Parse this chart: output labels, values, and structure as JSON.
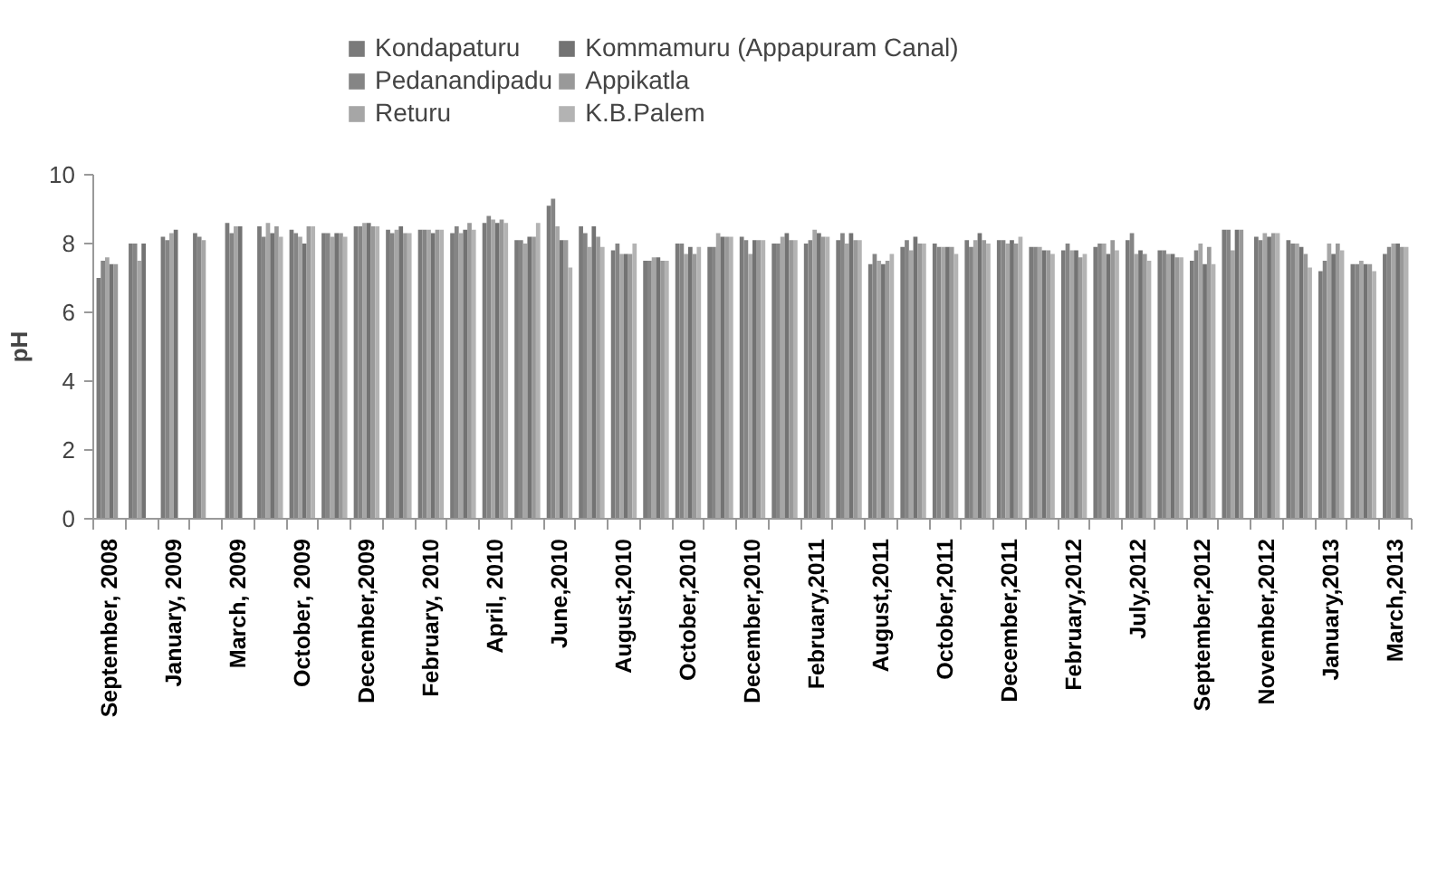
{
  "chart_data": {
    "type": "bar",
    "ylabel": "pH",
    "ylim": [
      0,
      10
    ],
    "yticks": [
      0,
      2,
      4,
      6,
      8,
      10
    ],
    "grid": false,
    "legend": "top",
    "categories": [
      "September, 2008",
      null,
      "January, 2009",
      null,
      "March, 2009",
      null,
      "October, 2009",
      null,
      "December,2009",
      null,
      "February, 2010",
      null,
      "April, 2010",
      null,
      "June,2010",
      null,
      "August,2010",
      null,
      "October,2010",
      null,
      "December,2010",
      null,
      "February,2011",
      null,
      "August,2011",
      null,
      "October,2011",
      null,
      "December,2011",
      null,
      "February,2012",
      null,
      "July,2012",
      null,
      "September,2012",
      null,
      "November,2012",
      null,
      "January,2013",
      null,
      "March,2013"
    ],
    "series": [
      {
        "name": "Kondapaturu",
        "color": "#7a7a7a",
        "values": [
          7.0,
          8.0,
          8.2,
          8.3,
          8.6,
          8.5,
          8.4,
          8.3,
          8.5,
          8.4,
          8.4,
          8.3,
          8.6,
          8.1,
          9.1,
          8.5,
          7.8,
          7.5,
          8.0,
          7.9,
          8.2,
          8.0,
          8.0,
          8.1,
          7.4,
          7.9,
          8.0,
          8.1,
          8.1,
          7.9,
          7.8,
          7.9,
          8.1,
          7.8,
          7.5,
          8.4,
          8.2,
          8.1,
          7.2,
          7.4,
          7.7
        ]
      },
      {
        "name": "Pedanandipadu",
        "color": "#858585",
        "values": [
          7.5,
          8.0,
          8.1,
          8.2,
          8.3,
          8.2,
          8.3,
          8.3,
          8.5,
          8.3,
          8.4,
          8.5,
          8.8,
          8.1,
          9.3,
          8.3,
          8.0,
          7.5,
          8.0,
          7.9,
          8.1,
          8.0,
          8.1,
          8.3,
          7.7,
          8.1,
          7.9,
          7.9,
          8.1,
          7.9,
          8.0,
          8.0,
          8.3,
          7.8,
          7.8,
          8.4,
          8.1,
          8.0,
          7.5,
          7.4,
          7.9
        ]
      },
      {
        "name": "Returu",
        "color": "#a6a6a6",
        "values": [
          7.6,
          7.5,
          8.3,
          8.1,
          8.5,
          8.6,
          8.2,
          8.2,
          8.6,
          8.4,
          8.4,
          8.3,
          8.7,
          8.0,
          8.5,
          7.9,
          7.7,
          7.6,
          7.7,
          8.3,
          7.7,
          8.2,
          8.4,
          8.0,
          7.5,
          7.8,
          7.9,
          8.1,
          8.0,
          7.9,
          7.8,
          8.0,
          7.7,
          7.7,
          8.0,
          7.8,
          8.3,
          8.0,
          8.0,
          7.5,
          8.0
        ]
      },
      {
        "name": "Kommamuru (Appapuram Canal)",
        "color": "#737373",
        "values": [
          7.4,
          8.0,
          8.4,
          null,
          8.5,
          8.3,
          8.0,
          8.3,
          8.6,
          8.5,
          8.3,
          8.4,
          8.6,
          8.2,
          8.1,
          8.5,
          7.7,
          7.6,
          7.9,
          8.2,
          8.1,
          8.3,
          8.3,
          8.3,
          7.4,
          8.2,
          7.9,
          8.3,
          8.1,
          7.8,
          7.8,
          7.7,
          7.8,
          7.7,
          7.4,
          8.4,
          8.2,
          7.9,
          7.7,
          7.4,
          8.0
        ]
      },
      {
        "name": "Appikatla",
        "color": "#999999",
        "values": [
          7.4,
          null,
          null,
          null,
          null,
          8.5,
          8.5,
          8.3,
          8.5,
          8.3,
          8.4,
          8.6,
          8.7,
          8.2,
          8.1,
          8.2,
          7.7,
          7.5,
          7.7,
          8.2,
          8.1,
          8.1,
          8.2,
          8.1,
          7.5,
          8.0,
          7.9,
          8.1,
          8.0,
          7.8,
          7.6,
          8.1,
          7.7,
          7.6,
          7.9,
          8.4,
          8.3,
          7.7,
          8.0,
          7.4,
          7.9
        ]
      },
      {
        "name": "K.B.Palem",
        "color": "#b3b3b3",
        "values": [
          null,
          null,
          null,
          null,
          null,
          8.2,
          8.5,
          8.2,
          8.5,
          8.3,
          8.4,
          8.4,
          8.6,
          8.6,
          7.3,
          7.9,
          8.0,
          7.5,
          7.9,
          8.2,
          8.1,
          8.1,
          8.2,
          8.1,
          7.7,
          8.0,
          7.7,
          8.0,
          8.2,
          7.7,
          7.7,
          7.8,
          7.5,
          7.6,
          7.4,
          null,
          8.3,
          7.3,
          7.8,
          7.2,
          7.9
        ]
      }
    ]
  }
}
